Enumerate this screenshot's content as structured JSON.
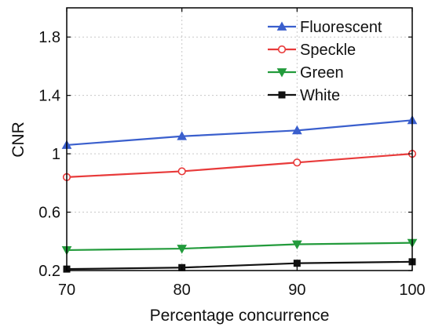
{
  "chart_data": {
    "type": "line",
    "xlabel": "Percentage concurrence",
    "ylabel": "CNR",
    "xlim": [
      70,
      100
    ],
    "ylim": [
      0.2,
      2.0
    ],
    "xticks": [
      70,
      80,
      90,
      100
    ],
    "yticks": [
      0.2,
      0.6,
      1,
      1.4,
      1.8
    ],
    "ytick_labels": [
      "0.2",
      "0.6",
      "1",
      "1.4",
      "1.8"
    ],
    "grid": true,
    "legend_position": "top-right",
    "series": [
      {
        "name": "Fluorescent",
        "color": "#3a5fcd",
        "marker": "triangle-up",
        "x": [
          70,
          80,
          90,
          100
        ],
        "y": [
          1.06,
          1.12,
          1.16,
          1.23
        ]
      },
      {
        "name": "Speckle",
        "color": "#e83a3a",
        "marker": "circle",
        "x": [
          70,
          80,
          90,
          100
        ],
        "y": [
          0.84,
          0.88,
          0.94,
          1.0
        ]
      },
      {
        "name": "Green",
        "color": "#239b3c",
        "marker": "triangle-down",
        "x": [
          70,
          80,
          90,
          100
        ],
        "y": [
          0.34,
          0.35,
          0.38,
          0.39
        ]
      },
      {
        "name": "White",
        "color": "#111111",
        "marker": "square",
        "x": [
          70,
          80,
          90,
          100
        ],
        "y": [
          0.21,
          0.22,
          0.25,
          0.26
        ]
      }
    ]
  }
}
